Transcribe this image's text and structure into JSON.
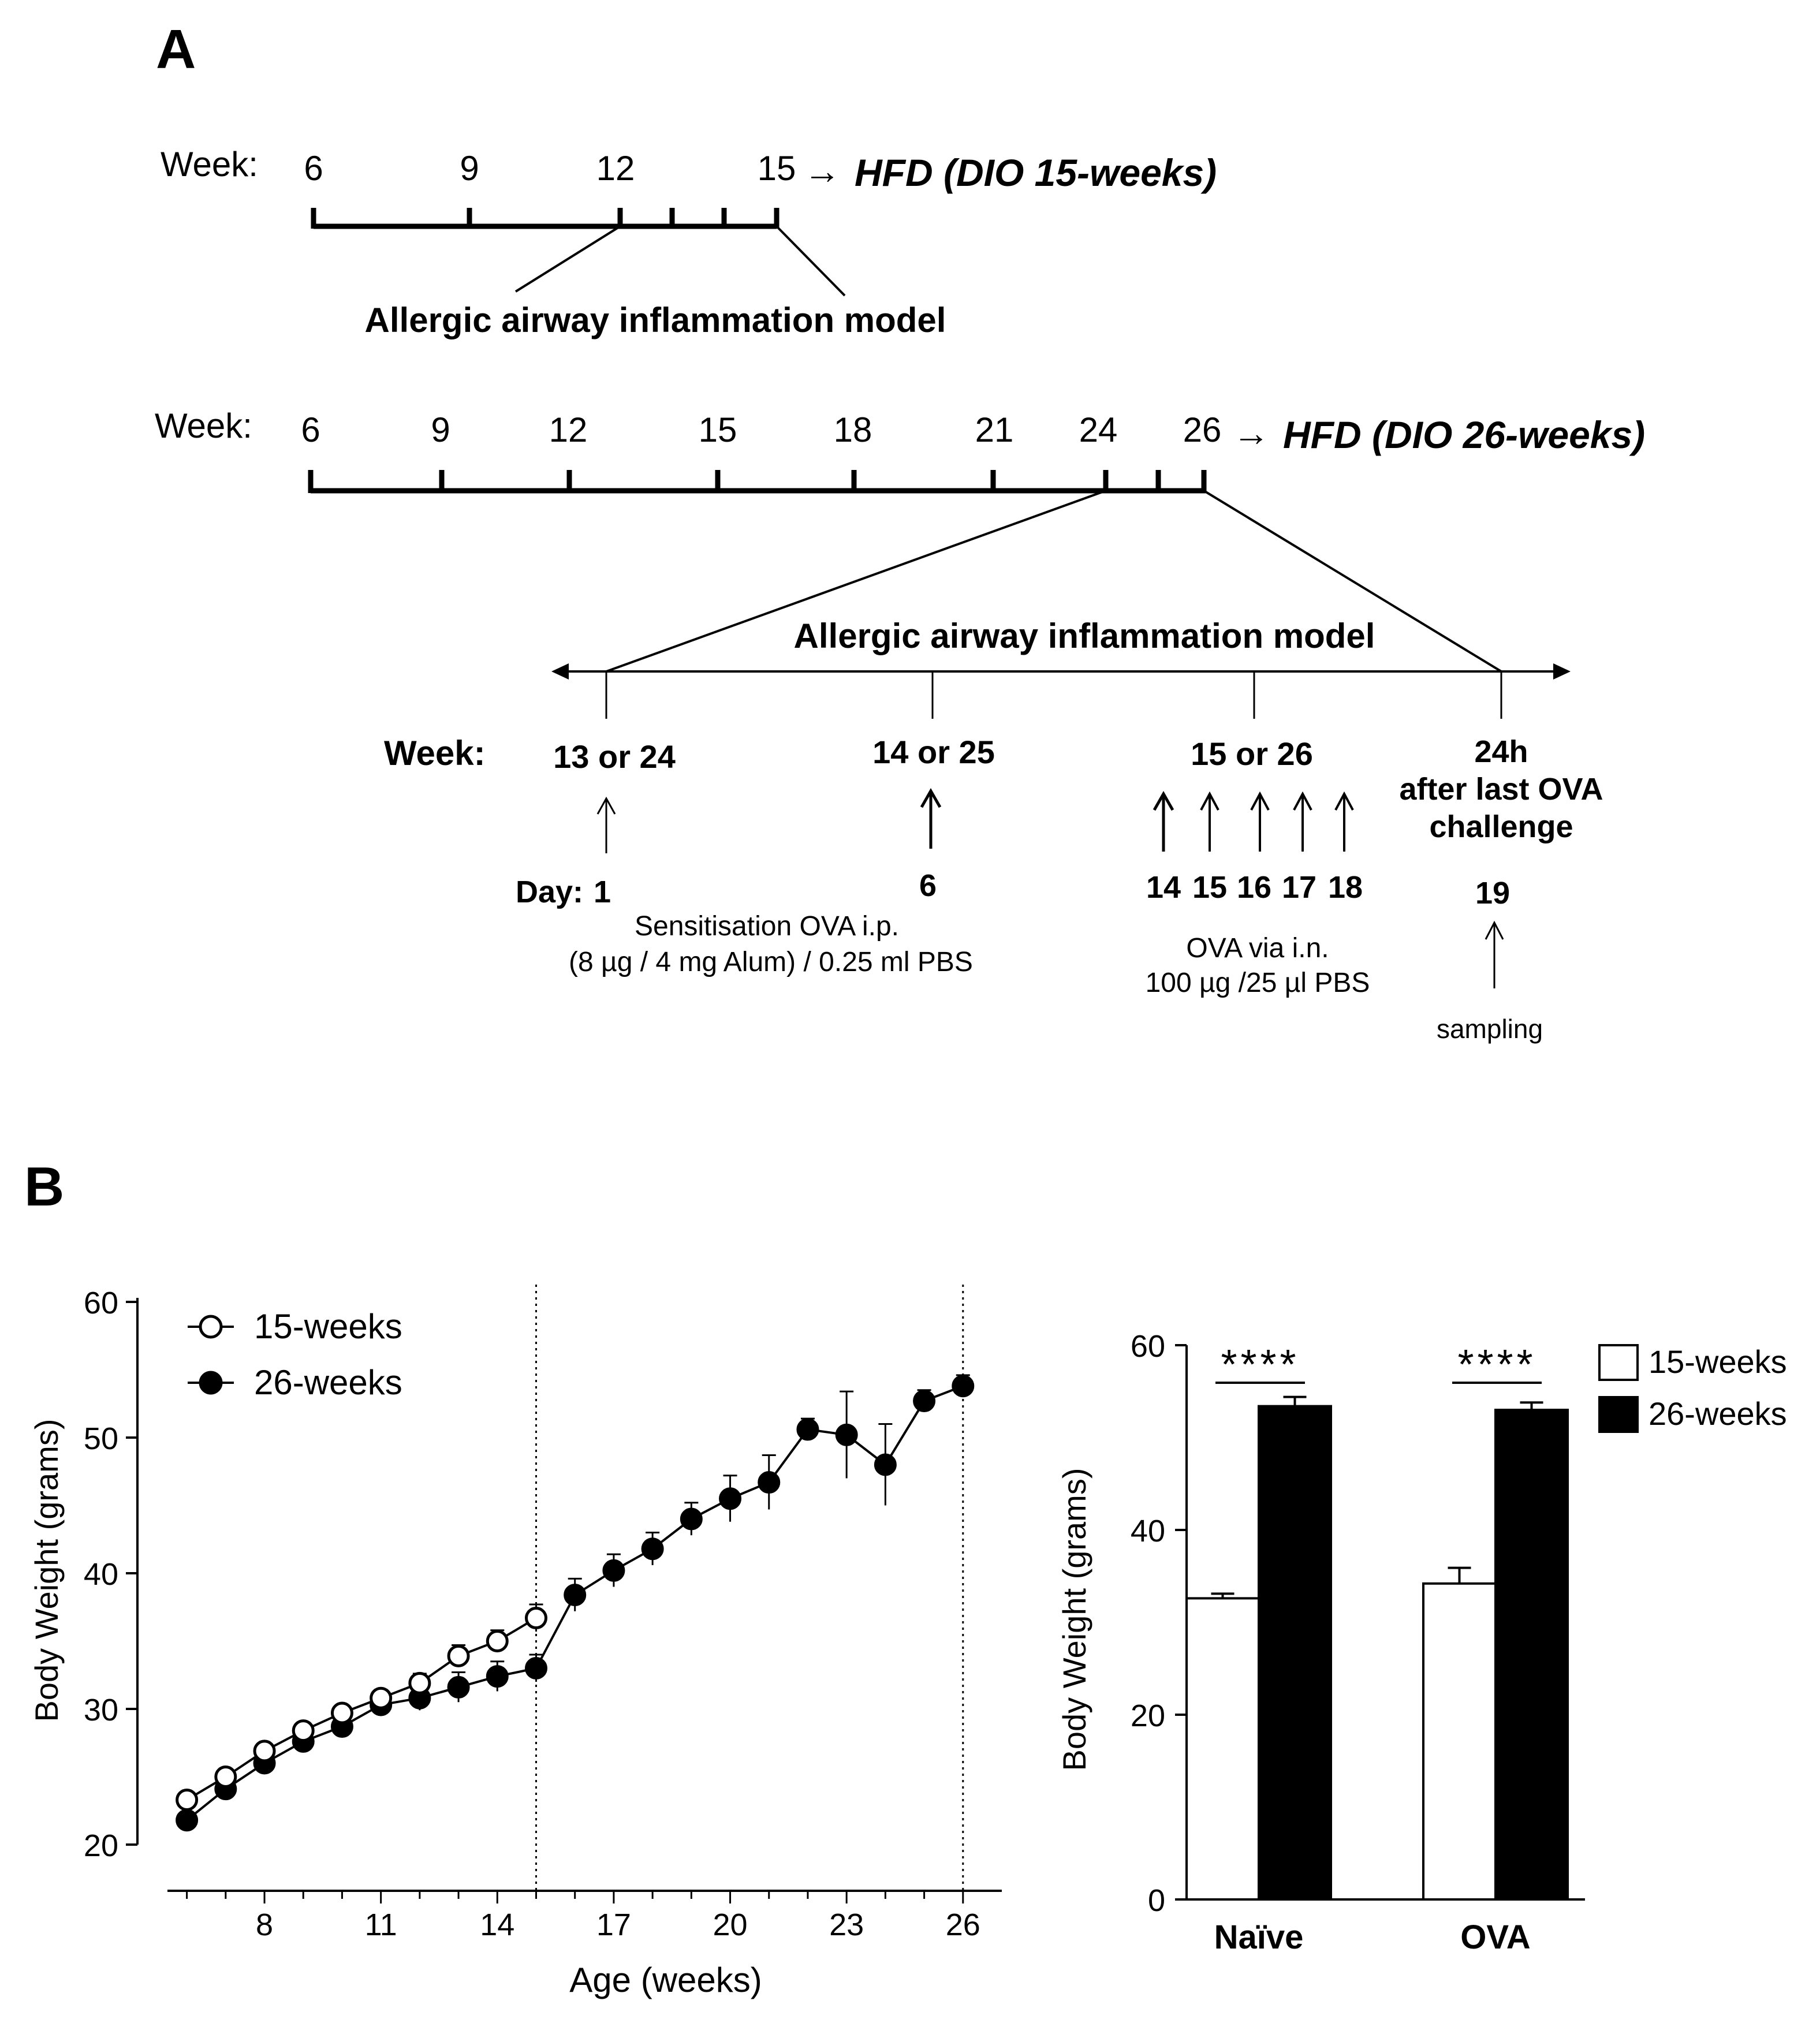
{
  "panel_a": {
    "label": "A",
    "timeline1": {
      "week_label": "Week:",
      "ticks": [
        "6",
        "9",
        "12",
        "15"
      ],
      "arrow": "→",
      "diet_label": "HFD (DIO 15-weeks)",
      "model_label": "Allergic airway inflammation model"
    },
    "timeline2": {
      "week_label": "Week:",
      "ticks": [
        "6",
        "9",
        "12",
        "15",
        "18",
        "21",
        "24",
        "26"
      ],
      "arrow": "→",
      "diet_label": "HFD (DIO 26-weeks)"
    },
    "expanded": {
      "title": "Allergic airway inflammation model",
      "week_label": "Week:",
      "day_label": "Day:",
      "week_13_24": "13 or 24",
      "week_14_25": "14 or 25",
      "week_15_26": "15 or 26",
      "sampling_time": [
        "24h",
        "after last OVA",
        "challenge"
      ],
      "day_1": "1",
      "day_6": "6",
      "days_challenge": [
        "14",
        "15",
        "16",
        "17",
        "18"
      ],
      "day_19": "19",
      "sensitisation": [
        "Sensitisation  OVA  i.p.",
        "(8 µg / 4 mg Alum) / 0.25 ml PBS"
      ],
      "challenge": [
        "OVA via i.n.",
        "100 µg /25 µl PBS"
      ],
      "sampling": "sampling"
    }
  },
  "panel_b": {
    "label": "B"
  },
  "chart_data": [
    {
      "type": "line",
      "xlabel": "Age (weeks)",
      "ylabel": "Body Weight (grams)",
      "xlim": [
        5.5,
        27
      ],
      "ylim": [
        19.5,
        60
      ],
      "xticks": [
        8,
        11,
        14,
        17,
        20,
        23,
        26
      ],
      "yticks": [
        20,
        30,
        40,
        50,
        60
      ],
      "vlines": [
        15,
        26
      ],
      "legend_position": "top-left",
      "series": [
        {
          "name": "15-weeks",
          "marker": "open-circle",
          "x": [
            6,
            7,
            8,
            9,
            10,
            11,
            12,
            13,
            14,
            15
          ],
          "y": [
            23.3,
            25.0,
            26.9,
            28.4,
            29.7,
            30.8,
            31.9,
            33.9,
            35.0,
            36.7
          ],
          "err": [
            0.5,
            0.6,
            0.6,
            0.6,
            0.6,
            0.6,
            0.7,
            0.8,
            0.8,
            1.0
          ]
        },
        {
          "name": "26-weeks",
          "marker": "filled-circle",
          "x": [
            6,
            7,
            8,
            9,
            10,
            11,
            12,
            13,
            14,
            15,
            16,
            17,
            18,
            19,
            20,
            21,
            22,
            23,
            24,
            25,
            26
          ],
          "y": [
            21.8,
            24.1,
            26.0,
            27.6,
            28.7,
            30.3,
            30.8,
            31.6,
            32.4,
            33.0,
            38.4,
            40.2,
            41.8,
            44.0,
            45.5,
            46.7,
            50.6,
            50.2,
            48.0,
            52.7,
            53.8
          ],
          "err": [
            0.5,
            0.6,
            0.6,
            0.6,
            0.7,
            0.8,
            0.9,
            1.1,
            1.1,
            1.0,
            1.2,
            1.2,
            1.2,
            1.2,
            1.7,
            2.0,
            0.8,
            3.2,
            3.0,
            0.8,
            0.8
          ]
        }
      ]
    },
    {
      "type": "bar",
      "ylabel": "Body Weight (grams)",
      "ylim": [
        0,
        60
      ],
      "yticks": [
        0,
        20,
        40,
        60
      ],
      "categories": [
        "Naïve",
        "OVA"
      ],
      "legend_position": "top-right",
      "series": [
        {
          "name": "15-weeks",
          "fill": "#ffffff",
          "values": [
            32.6,
            34.2
          ],
          "err": [
            0.5,
            1.7
          ]
        },
        {
          "name": "26-weeks",
          "fill": "#000000",
          "values": [
            53.4,
            53.0
          ],
          "err": [
            1.0,
            0.8
          ]
        }
      ],
      "significance": [
        "****",
        "****"
      ]
    }
  ]
}
